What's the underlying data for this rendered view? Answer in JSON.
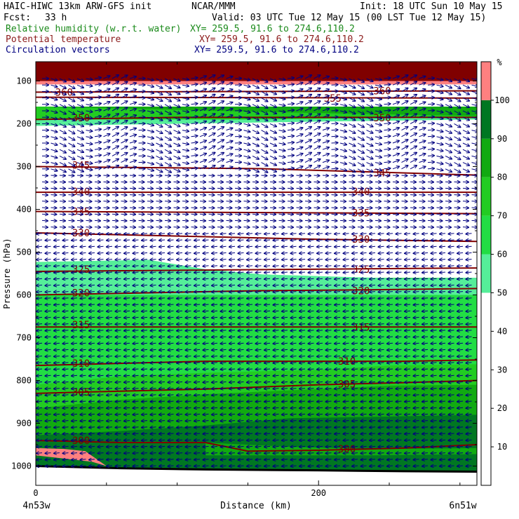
{
  "header": {
    "model_line": "HAIC-HIWC 13km ARW-GFS init",
    "org": "NCAR/MMM",
    "init": "Init: 18 UTC Sun 10 May 15",
    "fcst_label": "Fcst:",
    "fcst_value": "33 h",
    "valid": "Valid: 03 UTC Tue 12 May 15 (00 LST Tue 12 May 15)",
    "fields": [
      {
        "name": "Relative humidity (w.r.t. water)",
        "xy": "XY= 259.5, 91.6 to 274.6,110.2",
        "color": "#1a8a1a"
      },
      {
        "name": "Potential temperature",
        "xy": "XY= 259.5, 91.6 to 274.6,110.2",
        "color": "#8b1a1a"
      },
      {
        "name": "Circulation vectors",
        "xy": "XY= 259.5, 91.6 to 274.6,110.2",
        "color": "#000080"
      }
    ]
  },
  "chart_data": {
    "type": "cross-section",
    "xlabel": "Distance (km)",
    "ylabel": "Pressure (hPa)",
    "x_ticks": [
      0,
      200
    ],
    "xlim": [
      0,
      312
    ],
    "y_ticks": [
      100,
      200,
      300,
      400,
      500,
      600,
      700,
      800,
      900,
      1000
    ],
    "ylim": [
      1045,
      55
    ],
    "x_start_label": "4n53w",
    "x_end_label": "6n51w",
    "colorbar": {
      "unit": "%",
      "levels": [
        10,
        20,
        30,
        40,
        50,
        60,
        70,
        80,
        90,
        100
      ],
      "colors": [
        "#ffffff",
        "#ffffff",
        "#ffffff",
        "#ffffff",
        "#ffffff",
        "#55ee99",
        "#22dd44",
        "#22cc22",
        "#11aa11",
        "#007722",
        "#ff8080"
      ]
    },
    "rh_layers": [
      {
        "color": "#22dd44",
        "top": [
          [
            0,
            560
          ],
          [
            312,
            560
          ]
        ],
        "bottom": [
          [
            0,
            1040
          ],
          [
            312,
            1040
          ]
        ]
      },
      {
        "color": "#55ee99",
        "top": [
          [
            0,
            523
          ],
          [
            80,
            518
          ],
          [
            120,
            540
          ],
          [
            160,
            552
          ],
          [
            200,
            556
          ],
          [
            260,
            562
          ],
          [
            312,
            560
          ]
        ],
        "bottom": [
          [
            0,
            600
          ],
          [
            312,
            600
          ]
        ]
      },
      {
        "color": "#22cc22",
        "top": [
          [
            0,
            810
          ],
          [
            60,
            790
          ],
          [
            120,
            782
          ],
          [
            200,
            775
          ],
          [
            250,
            765
          ],
          [
            312,
            762
          ]
        ],
        "bottom": [
          [
            0,
            1040
          ],
          [
            312,
            1040
          ]
        ]
      },
      {
        "color": "#11aa11",
        "top": [
          [
            0,
            865
          ],
          [
            60,
            845
          ],
          [
            120,
            832
          ],
          [
            200,
            820
          ],
          [
            250,
            812
          ],
          [
            312,
            810
          ]
        ],
        "bottom": [
          [
            0,
            1040
          ],
          [
            312,
            1040
          ]
        ]
      },
      {
        "color": "#007722",
        "top": [
          [
            0,
            928
          ],
          [
            60,
            918
          ],
          [
            120,
            905
          ],
          [
            180,
            888
          ],
          [
            240,
            885
          ],
          [
            312,
            880
          ]
        ],
        "bottom": [
          [
            0,
            1040
          ],
          [
            312,
            1040
          ]
        ]
      },
      {
        "color": "#11aa11",
        "top": [
          [
            120,
            945
          ],
          [
            180,
            955
          ],
          [
            240,
            960
          ],
          [
            312,
            958
          ]
        ],
        "bottom": [
          [
            120,
            975
          ],
          [
            180,
            975
          ],
          [
            240,
            975
          ],
          [
            312,
            972
          ]
        ]
      },
      {
        "color": "#55ee99",
        "top": [
          [
            0,
            160
          ],
          [
            312,
            160
          ]
        ],
        "bottom": [
          [
            0,
            205
          ],
          [
            100,
            200
          ],
          [
            200,
            195
          ],
          [
            312,
            190
          ]
        ]
      },
      {
        "color": "#22cc22",
        "top": [
          [
            0,
            160
          ],
          [
            312,
            160
          ]
        ],
        "bottom": [
          [
            0,
            190
          ],
          [
            150,
            190
          ],
          [
            312,
            185
          ]
        ]
      },
      {
        "color": "#11aa11",
        "top": [
          [
            0,
            160
          ],
          [
            312,
            160
          ]
        ],
        "bottom": [
          [
            200,
            175
          ],
          [
            312,
            182
          ]
        ]
      },
      {
        "color": "#800000",
        "top": [
          [
            0,
            55
          ],
          [
            312,
            55
          ]
        ],
        "bottom": [
          [
            0,
            100
          ],
          [
            312,
            100
          ]
        ]
      },
      {
        "color": "#ff8080",
        "top": [
          [
            0,
            100
          ],
          [
            312,
            100
          ]
        ],
        "bottom": [
          [
            0,
            108
          ],
          [
            312,
            108
          ]
        ]
      },
      {
        "color": "#ff8080",
        "top": [
          [
            0,
            958
          ],
          [
            20,
            960
          ],
          [
            35,
            965
          ]
        ],
        "bottom": [
          [
            0,
            975
          ],
          [
            40,
            990
          ],
          [
            50,
            1000
          ]
        ]
      }
    ],
    "theta_contours": [
      {
        "level": 300,
        "points": [
          [
            0,
            940
          ],
          [
            60,
            945
          ],
          [
            120,
            945
          ],
          [
            150,
            965
          ],
          [
            200,
            963
          ],
          [
            260,
            958
          ],
          [
            312,
            950
          ]
        ],
        "labels": [
          [
            32,
            940
          ],
          [
            220,
            960
          ]
        ]
      },
      {
        "level": 305,
        "points": [
          [
            0,
            830
          ],
          [
            60,
            825
          ],
          [
            120,
            820
          ],
          [
            200,
            810
          ],
          [
            260,
            805
          ],
          [
            312,
            800
          ]
        ],
        "labels": [
          [
            32,
            827
          ],
          [
            220,
            808
          ]
        ]
      },
      {
        "level": 310,
        "points": [
          [
            0,
            765
          ],
          [
            60,
            760
          ],
          [
            120,
            755
          ],
          [
            200,
            755
          ],
          [
            260,
            755
          ],
          [
            312,
            752
          ]
        ],
        "labels": [
          [
            32,
            760
          ],
          [
            220,
            755
          ]
        ]
      },
      {
        "level": 315,
        "points": [
          [
            0,
            675
          ],
          [
            312,
            675
          ]
        ],
        "labels": [
          [
            32,
            670
          ],
          [
            230,
            675
          ]
        ]
      },
      {
        "level": 320,
        "points": [
          [
            0,
            600
          ],
          [
            80,
            595
          ],
          [
            160,
            590
          ],
          [
            240,
            588
          ],
          [
            312,
            585
          ]
        ],
        "labels": [
          [
            32,
            595
          ],
          [
            230,
            590
          ]
        ]
      },
      {
        "level": 325,
        "points": [
          [
            0,
            545
          ],
          [
            312,
            537
          ]
        ],
        "labels": [
          [
            32,
            540
          ],
          [
            230,
            540
          ]
        ]
      },
      {
        "level": 330,
        "points": [
          [
            0,
            455
          ],
          [
            200,
            470
          ],
          [
            312,
            475
          ]
        ],
        "labels": [
          [
            32,
            455
          ],
          [
            230,
            470
          ]
        ]
      },
      {
        "level": 335,
        "points": [
          [
            0,
            405
          ],
          [
            312,
            410
          ]
        ],
        "labels": [
          [
            32,
            405
          ],
          [
            230,
            408
          ]
        ]
      },
      {
        "level": 340,
        "points": [
          [
            0,
            360
          ],
          [
            312,
            360
          ]
        ],
        "labels": [
          [
            32,
            358
          ],
          [
            230,
            358
          ]
        ]
      },
      {
        "level": 345,
        "points": [
          [
            0,
            300
          ],
          [
            160,
            305
          ],
          [
            312,
            320
          ]
        ],
        "labels": [
          [
            32,
            297
          ],
          [
            245,
            315
          ]
        ]
      },
      {
        "level": 350,
        "points": [
          [
            0,
            190
          ],
          [
            100,
            185
          ],
          [
            312,
            185
          ]
        ],
        "labels": [
          [
            32,
            186
          ],
          [
            245,
            186
          ]
        ]
      },
      {
        "level": 355,
        "points": [
          [
            0,
            138
          ],
          [
            312,
            140
          ]
        ],
        "labels": [
          [
            210,
            140
          ]
        ]
      },
      {
        "level": 360,
        "points": [
          [
            0,
            126
          ],
          [
            312,
            123
          ]
        ],
        "labels": [
          [
            20,
            126
          ],
          [
            245,
            123
          ]
        ]
      }
    ],
    "surface_line": [
      [
        0,
        1000
      ],
      [
        60,
        1005
      ],
      [
        120,
        1008
      ],
      [
        200,
        1010
      ],
      [
        260,
        1012
      ],
      [
        312,
        1013
      ]
    ]
  }
}
